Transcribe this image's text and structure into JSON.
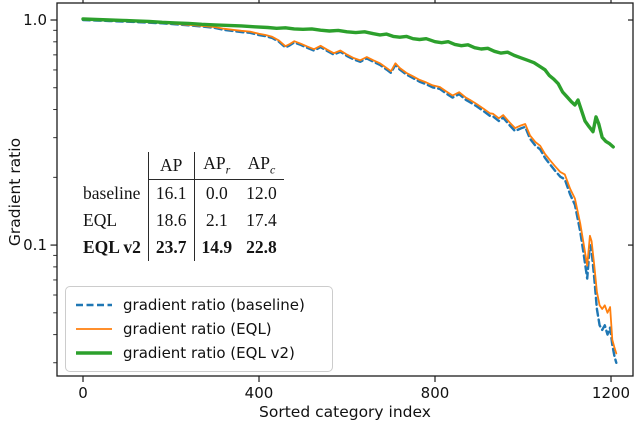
{
  "figure": {
    "xlabel": "Sorted category index",
    "ylabel": "Gradient ratio"
  },
  "table": {
    "col_label_blank": "",
    "col_ap": "AP",
    "col_apr_base": "AP",
    "col_apr_sub": "r",
    "col_apc_base": "AP",
    "col_apc_sub": "c",
    "rows": [
      {
        "label": "baseline",
        "ap": "16.1",
        "apr": "0.0",
        "apc": "12.0"
      },
      {
        "label": "EQL",
        "ap": "18.6",
        "apr": "2.1",
        "apc": "17.4"
      },
      {
        "label": "EQL v2",
        "ap": "23.7",
        "apr": "14.9",
        "apc": "22.8"
      }
    ]
  },
  "legend": {
    "items": [
      {
        "label": "gradient ratio (baseline)",
        "color": "#1f77b4",
        "dash": "7,3.5",
        "width": 2.6
      },
      {
        "label": "gradient ratio (EQL)",
        "color": "#ff7f0e",
        "dash": "",
        "width": 1.8
      },
      {
        "label": "gradient ratio (EQL v2)",
        "color": "#2ca02c",
        "dash": "",
        "width": 3.4
      }
    ]
  },
  "chart_data": {
    "type": "line",
    "title": "",
    "xlabel": "Sorted category index",
    "ylabel": "Gradient ratio",
    "x_axis": {
      "ticks": [
        0,
        400,
        800,
        1200
      ],
      "tick_labels": [
        "0",
        "400",
        "800",
        "1200"
      ],
      "lim": [
        -59.1,
        1250
      ]
    },
    "y_axis": {
      "scale": "log",
      "ticks_major": [
        1.0,
        0.1
      ],
      "tick_labels": [
        "1.0",
        "0.1"
      ],
      "ticks_minor": [
        0.9,
        0.8,
        0.7,
        0.6,
        0.5,
        0.4,
        0.3,
        0.2,
        0.09,
        0.08,
        0.07,
        0.06,
        0.05,
        0.04,
        0.03
      ],
      "lim": [
        0.0262,
        1.19
      ]
    },
    "grid": false,
    "legend_position": "lower-left",
    "series": [
      {
        "name": "gradient ratio (baseline)",
        "color": "#1f77b4",
        "style": "dashed",
        "width": 2.4,
        "points": [
          [
            0,
            1.0
          ],
          [
            30,
            0.995
          ],
          [
            60,
            0.99
          ],
          [
            90,
            0.985
          ],
          [
            120,
            0.98
          ],
          [
            150,
            0.973
          ],
          [
            180,
            0.967
          ],
          [
            210,
            0.957
          ],
          [
            240,
            0.947
          ],
          [
            270,
            0.936
          ],
          [
            300,
            0.922
          ],
          [
            320,
            0.904
          ],
          [
            340,
            0.894
          ],
          [
            360,
            0.884
          ],
          [
            380,
            0.877
          ],
          [
            400,
            0.857
          ],
          [
            415,
            0.847
          ],
          [
            430,
            0.832
          ],
          [
            445,
            0.802
          ],
          [
            460,
            0.755
          ],
          [
            470,
            0.772
          ],
          [
            480,
            0.795
          ],
          [
            495,
            0.775
          ],
          [
            510,
            0.752
          ],
          [
            525,
            0.732
          ],
          [
            540,
            0.758
          ],
          [
            555,
            0.728
          ],
          [
            570,
            0.702
          ],
          [
            585,
            0.722
          ],
          [
            600,
            0.692
          ],
          [
            615,
            0.668
          ],
          [
            630,
            0.652
          ],
          [
            645,
            0.675
          ],
          [
            660,
            0.652
          ],
          [
            675,
            0.632
          ],
          [
            690,
            0.602
          ],
          [
            700,
            0.582
          ],
          [
            710,
            0.632
          ],
          [
            720,
            0.602
          ],
          [
            735,
            0.572
          ],
          [
            750,
            0.552
          ],
          [
            765,
            0.532
          ],
          [
            780,
            0.518
          ],
          [
            795,
            0.502
          ],
          [
            811,
            0.494
          ],
          [
            825,
            0.472
          ],
          [
            840,
            0.452
          ],
          [
            855,
            0.468
          ],
          [
            870,
            0.442
          ],
          [
            880,
            0.431
          ],
          [
            895,
            0.413
          ],
          [
            910,
            0.394
          ],
          [
            925,
            0.375
          ],
          [
            932,
            0.373
          ],
          [
            945,
            0.356
          ],
          [
            955,
            0.368
          ],
          [
            970,
            0.34
          ],
          [
            982,
            0.321
          ],
          [
            995,
            0.33
          ],
          [
            1005,
            0.335
          ],
          [
            1016,
            0.297
          ],
          [
            1028,
            0.277
          ],
          [
            1039,
            0.266
          ],
          [
            1050,
            0.244
          ],
          [
            1061,
            0.229
          ],
          [
            1072,
            0.215
          ],
          [
            1085,
            0.201
          ],
          [
            1095,
            0.196
          ],
          [
            1107,
            0.168
          ],
          [
            1118,
            0.151
          ],
          [
            1130,
            0.115
          ],
          [
            1138,
            0.091
          ],
          [
            1143,
            0.078
          ],
          [
            1146,
            0.071
          ],
          [
            1152,
            0.1
          ],
          [
            1156,
            0.094
          ],
          [
            1162,
            0.071
          ],
          [
            1168,
            0.052
          ],
          [
            1174,
            0.044
          ],
          [
            1180,
            0.042
          ],
          [
            1186,
            0.044
          ],
          [
            1192,
            0.04
          ],
          [
            1198,
            0.043
          ],
          [
            1203,
            0.036
          ],
          [
            1208,
            0.032
          ],
          [
            1212,
            0.03
          ]
        ]
      },
      {
        "name": "gradient ratio (EQL)",
        "color": "#ff7f0e",
        "style": "solid",
        "width": 1.8,
        "points": [
          [
            0,
            1.005
          ],
          [
            30,
            1.0
          ],
          [
            60,
            0.995
          ],
          [
            90,
            0.99
          ],
          [
            120,
            0.985
          ],
          [
            150,
            0.978
          ],
          [
            180,
            0.972
          ],
          [
            210,
            0.962
          ],
          [
            240,
            0.952
          ],
          [
            270,
            0.942
          ],
          [
            300,
            0.93
          ],
          [
            320,
            0.915
          ],
          [
            340,
            0.905
          ],
          [
            360,
            0.895
          ],
          [
            380,
            0.888
          ],
          [
            400,
            0.868
          ],
          [
            415,
            0.858
          ],
          [
            430,
            0.842
          ],
          [
            445,
            0.812
          ],
          [
            460,
            0.765
          ],
          [
            470,
            0.782
          ],
          [
            480,
            0.805
          ],
          [
            495,
            0.785
          ],
          [
            510,
            0.762
          ],
          [
            525,
            0.742
          ],
          [
            540,
            0.768
          ],
          [
            555,
            0.738
          ],
          [
            570,
            0.712
          ],
          [
            585,
            0.732
          ],
          [
            600,
            0.702
          ],
          [
            615,
            0.678
          ],
          [
            630,
            0.662
          ],
          [
            645,
            0.685
          ],
          [
            660,
            0.662
          ],
          [
            675,
            0.642
          ],
          [
            690,
            0.612
          ],
          [
            700,
            0.592
          ],
          [
            710,
            0.642
          ],
          [
            720,
            0.612
          ],
          [
            735,
            0.582
          ],
          [
            750,
            0.562
          ],
          [
            765,
            0.542
          ],
          [
            780,
            0.528
          ],
          [
            795,
            0.512
          ],
          [
            811,
            0.504
          ],
          [
            825,
            0.482
          ],
          [
            840,
            0.462
          ],
          [
            855,
            0.478
          ],
          [
            870,
            0.452
          ],
          [
            880,
            0.441
          ],
          [
            895,
            0.423
          ],
          [
            910,
            0.404
          ],
          [
            925,
            0.385
          ],
          [
            932,
            0.383
          ],
          [
            945,
            0.366
          ],
          [
            955,
            0.378
          ],
          [
            970,
            0.35
          ],
          [
            982,
            0.331
          ],
          [
            995,
            0.34
          ],
          [
            1005,
            0.345
          ],
          [
            1016,
            0.307
          ],
          [
            1028,
            0.287
          ],
          [
            1039,
            0.276
          ],
          [
            1050,
            0.254
          ],
          [
            1061,
            0.239
          ],
          [
            1072,
            0.225
          ],
          [
            1085,
            0.211
          ],
          [
            1095,
            0.206
          ],
          [
            1107,
            0.178
          ],
          [
            1118,
            0.161
          ],
          [
            1130,
            0.125
          ],
          [
            1138,
            0.101
          ],
          [
            1143,
            0.088
          ],
          [
            1146,
            0.081
          ],
          [
            1152,
            0.11
          ],
          [
            1156,
            0.104
          ],
          [
            1162,
            0.081
          ],
          [
            1168,
            0.062
          ],
          [
            1174,
            0.054
          ],
          [
            1180,
            0.052
          ],
          [
            1186,
            0.054
          ],
          [
            1192,
            0.05
          ],
          [
            1198,
            0.053
          ],
          [
            1203,
            0.038
          ],
          [
            1208,
            0.035
          ],
          [
            1212,
            0.033
          ]
        ]
      },
      {
        "name": "gradient ratio (EQL v2)",
        "color": "#2ca02c",
        "style": "solid",
        "width": 3.4,
        "points": [
          [
            0,
            1.01
          ],
          [
            30,
            1.005
          ],
          [
            60,
            1.0
          ],
          [
            90,
            0.996
          ],
          [
            120,
            0.991
          ],
          [
            150,
            0.986
          ],
          [
            180,
            0.977
          ],
          [
            210,
            0.971
          ],
          [
            240,
            0.966
          ],
          [
            270,
            0.957
          ],
          [
            300,
            0.951
          ],
          [
            330,
            0.946
          ],
          [
            360,
            0.941
          ],
          [
            390,
            0.933
          ],
          [
            420,
            0.926
          ],
          [
            440,
            0.919
          ],
          [
            460,
            0.923
          ],
          [
            480,
            0.913
          ],
          [
            500,
            0.909
          ],
          [
            520,
            0.913
          ],
          [
            540,
            0.901
          ],
          [
            560,
            0.894
          ],
          [
            580,
            0.899
          ],
          [
            600,
            0.886
          ],
          [
            620,
            0.879
          ],
          [
            640,
            0.886
          ],
          [
            660,
            0.869
          ],
          [
            675,
            0.859
          ],
          [
            690,
            0.866
          ],
          [
            705,
            0.846
          ],
          [
            720,
            0.839
          ],
          [
            735,
            0.846
          ],
          [
            750,
            0.826
          ],
          [
            765,
            0.819
          ],
          [
            780,
            0.826
          ],
          [
            800,
            0.801
          ],
          [
            815,
            0.793
          ],
          [
            830,
            0.801
          ],
          [
            845,
            0.779
          ],
          [
            860,
            0.769
          ],
          [
            875,
            0.776
          ],
          [
            890,
            0.753
          ],
          [
            905,
            0.743
          ],
          [
            920,
            0.749
          ],
          [
            935,
            0.726
          ],
          [
            950,
            0.713
          ],
          [
            965,
            0.719
          ],
          [
            980,
            0.696
          ],
          [
            995,
            0.679
          ],
          [
            1010,
            0.663
          ],
          [
            1025,
            0.646
          ],
          [
            1040,
            0.619
          ],
          [
            1050,
            0.601
          ],
          [
            1060,
            0.566
          ],
          [
            1070,
            0.546
          ],
          [
            1080,
            0.521
          ],
          [
            1090,
            0.479
          ],
          [
            1100,
            0.456
          ],
          [
            1110,
            0.433
          ],
          [
            1118,
            0.419
          ],
          [
            1125,
            0.441
          ],
          [
            1132,
            0.401
          ],
          [
            1141,
            0.356
          ],
          [
            1150,
            0.336
          ],
          [
            1159,
            0.319
          ],
          [
            1166,
            0.371
          ],
          [
            1172,
            0.346
          ],
          [
            1180,
            0.301
          ],
          [
            1188,
            0.289
          ],
          [
            1196,
            0.283
          ],
          [
            1205,
            0.273
          ]
        ]
      }
    ],
    "annotation_table": {
      "columns": [
        "",
        "AP",
        "APr",
        "APc"
      ],
      "rows": [
        [
          "baseline",
          16.1,
          0.0,
          12.0
        ],
        [
          "EQL",
          18.6,
          2.1,
          17.4
        ],
        [
          "EQL v2",
          23.7,
          14.9,
          22.8
        ]
      ],
      "bold_row": "EQL v2"
    }
  }
}
